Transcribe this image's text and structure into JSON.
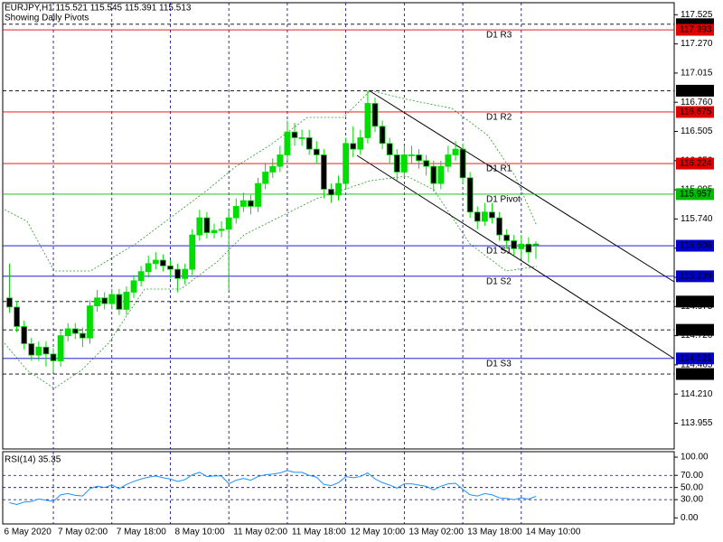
{
  "chart_data": [
    {
      "type": "candlestick",
      "title": "EURJPY,H1  115.521 115.545 115.391 115.513",
      "subtitle": "Showing Daily Pivots",
      "categories": [
        "6 May 2020",
        null,
        null,
        null,
        null,
        null,
        "7 May 02:00",
        null,
        null,
        null,
        null,
        null,
        null,
        null,
        "7 May 18:00",
        null,
        null,
        null,
        null,
        null,
        null,
        null,
        "8 May 10:00",
        null,
        null,
        null,
        null,
        null,
        null,
        null,
        "11 May 02:00",
        null,
        null,
        null,
        null,
        null,
        null,
        null,
        "11 May 18:00",
        null,
        null,
        null,
        null,
        null,
        null,
        null,
        "12 May 10:00",
        null,
        null,
        null,
        null,
        null,
        null,
        null,
        "13 May 02:00",
        null,
        null,
        null,
        null,
        null,
        null,
        null,
        "13 May 18:00",
        null,
        null,
        null,
        null,
        null,
        null,
        null,
        "14 May 10:00",
        null,
        null
      ],
      "open": [
        115.05,
        114.97,
        114.8,
        114.65,
        114.55,
        114.62,
        114.56,
        114.5,
        114.72,
        114.78,
        114.74,
        114.7,
        114.98,
        115.05,
        115.0,
        115.08,
        114.95,
        115.1,
        115.2,
        115.28,
        115.35,
        115.38,
        115.33,
        115.3,
        115.22,
        115.3,
        115.6,
        115.75,
        115.62,
        115.64,
        115.65,
        115.75,
        115.85,
        115.9,
        115.85,
        116.05,
        116.15,
        116.2,
        116.3,
        116.5,
        116.45,
        116.45,
        116.35,
        116.3,
        116.0,
        115.95,
        116.05,
        116.4,
        116.35,
        116.45,
        116.75,
        116.55,
        116.4,
        116.3,
        116.15,
        116.3,
        116.3,
        116.25,
        116.2,
        116.05,
        116.2,
        116.3,
        116.35,
        116.1,
        115.8,
        115.72,
        115.8,
        115.75,
        115.6,
        115.55,
        115.48,
        115.52,
        115.521
      ],
      "high": [
        115.35,
        115.02,
        114.85,
        114.7,
        114.67,
        114.67,
        114.61,
        114.77,
        114.83,
        114.83,
        114.79,
        115.03,
        115.12,
        115.1,
        115.13,
        115.13,
        115.15,
        115.25,
        115.33,
        115.42,
        115.45,
        115.43,
        115.38,
        115.35,
        115.35,
        115.65,
        115.82,
        115.8,
        115.7,
        115.72,
        115.82,
        115.92,
        115.97,
        115.95,
        116.1,
        116.22,
        116.27,
        116.38,
        116.6,
        116.58,
        116.52,
        116.52,
        116.42,
        116.35,
        116.05,
        116.12,
        116.45,
        116.55,
        116.52,
        116.86,
        116.8,
        116.6,
        116.45,
        116.35,
        116.38,
        116.38,
        116.35,
        116.3,
        116.25,
        116.25,
        116.38,
        116.42,
        116.4,
        116.15,
        115.85,
        115.88,
        115.88,
        115.8,
        115.65,
        115.6,
        115.6,
        115.58,
        115.545
      ],
      "low": [
        114.92,
        114.75,
        114.6,
        114.5,
        114.5,
        114.45,
        114.4,
        114.45,
        114.67,
        114.69,
        114.62,
        114.65,
        114.93,
        114.95,
        114.95,
        114.9,
        114.9,
        115.05,
        115.15,
        115.23,
        115.3,
        115.28,
        115.22,
        115.1,
        115.17,
        115.25,
        115.55,
        115.57,
        115.57,
        115.58,
        115.12,
        115.7,
        115.8,
        115.78,
        115.8,
        116.0,
        116.1,
        116.15,
        116.25,
        116.38,
        116.38,
        116.3,
        116.22,
        115.92,
        115.88,
        115.9,
        116.0,
        116.28,
        116.3,
        116.4,
        116.5,
        116.35,
        116.22,
        116.08,
        116.1,
        116.22,
        116.18,
        116.12,
        115.98,
        116.0,
        116.15,
        116.25,
        116.05,
        115.75,
        115.65,
        115.68,
        115.7,
        115.55,
        115.48,
        115.42,
        115.4,
        115.36,
        115.391
      ],
      "close": [
        114.97,
        114.8,
        114.65,
        114.55,
        114.62,
        114.56,
        114.5,
        114.72,
        114.78,
        114.74,
        114.7,
        114.98,
        115.05,
        115.0,
        115.08,
        114.95,
        115.1,
        115.2,
        115.28,
        115.35,
        115.38,
        115.33,
        115.3,
        115.22,
        115.3,
        115.6,
        115.75,
        115.62,
        115.64,
        115.65,
        115.75,
        115.85,
        115.9,
        115.85,
        116.05,
        116.15,
        116.2,
        116.3,
        116.5,
        116.45,
        116.45,
        116.35,
        116.3,
        116.0,
        115.95,
        116.05,
        116.4,
        116.35,
        116.45,
        116.75,
        116.55,
        116.4,
        116.3,
        116.15,
        116.3,
        116.3,
        116.25,
        116.2,
        116.05,
        116.2,
        116.3,
        116.35,
        116.1,
        115.8,
        115.72,
        115.8,
        115.75,
        115.6,
        115.55,
        115.48,
        115.52,
        115.45,
        115.513
      ],
      "up_color": "#00dd00",
      "down_color": "#000000",
      "wick_color": "#00dd00",
      "ylim": [
        113.73,
        117.63
      ],
      "yticks": [
        117.525,
        {
          "value": 117.27,
          "label": "117.270"
        },
        117.015,
        {
          "value": 116.76,
          "label": "116.760"
        },
        116.505,
        {
          "value": 116.25,
          "label": "116.250"
        },
        115.995,
        {
          "value": 115.74,
          "label": "115.740"
        },
        115.485,
        {
          "value": 115.23,
          "label": "115.230"
        },
        114.975,
        {
          "value": 114.72,
          "label": "114.720"
        },
        114.465,
        {
          "value": 114.21,
          "label": "114.210"
        },
        113.955
      ],
      "levels": [
        {
          "name": "D1 R3",
          "value": 117.393,
          "color": "#e00000"
        },
        {
          "name": "D1 R2",
          "value": 116.675,
          "color": "#e00000"
        },
        {
          "name": "D1 R1",
          "value": 116.224,
          "color": "#e00000"
        },
        {
          "name": "D1 Pivot",
          "value": 115.957,
          "color": "#00bb00"
        },
        {
          "name": "D1 S1",
          "value": 115.506,
          "color": "#0000cc"
        },
        {
          "name": "D1 S2",
          "value": 115.239,
          "color": "#0000cc"
        },
        {
          "name": "D1 S3",
          "value": 114.521,
          "color": "#0000cc"
        }
      ],
      "marker_lines": [
        {
          "value": 117.442,
          "color": "#000000"
        },
        {
          "value": 116.861,
          "color": "#000000"
        },
        {
          "value": 115.018,
          "color": "#000000"
        },
        {
          "value": 114.771,
          "color": "#000000"
        },
        {
          "value": 114.385,
          "color": "#000000"
        }
      ],
      "grid": true
    },
    {
      "type": "line",
      "title": "RSI(14) 35.35",
      "series": [
        {
          "color": "#1e90ff",
          "values": [
            25,
            22,
            26,
            27,
            31,
            29,
            27,
            38,
            40,
            37,
            36,
            48,
            52,
            50,
            54,
            48,
            55,
            60,
            64,
            67,
            69,
            66,
            64,
            60,
            63,
            71,
            75,
            68,
            69,
            69,
            56,
            62,
            65,
            62,
            68,
            71,
            72,
            74,
            78,
            75,
            75,
            70,
            67,
            55,
            53,
            58,
            68,
            66,
            68,
            74,
            64,
            58,
            54,
            49,
            56,
            56,
            54,
            52,
            46,
            52,
            56,
            57,
            47,
            38,
            36,
            40,
            38,
            33,
            32,
            30,
            33,
            31,
            35.35
          ]
        }
      ],
      "ylim": [
        -10,
        109
      ],
      "yticks": [
        {
          "value": 100,
          "label": "100.00"
        },
        {
          "value": 70,
          "label": "70.00"
        },
        {
          "value": 50,
          "label": "50.00"
        },
        {
          "value": 30,
          "label": "30.00"
        },
        {
          "value": 0,
          "label": "0.00"
        }
      ],
      "grid": true
    }
  ]
}
